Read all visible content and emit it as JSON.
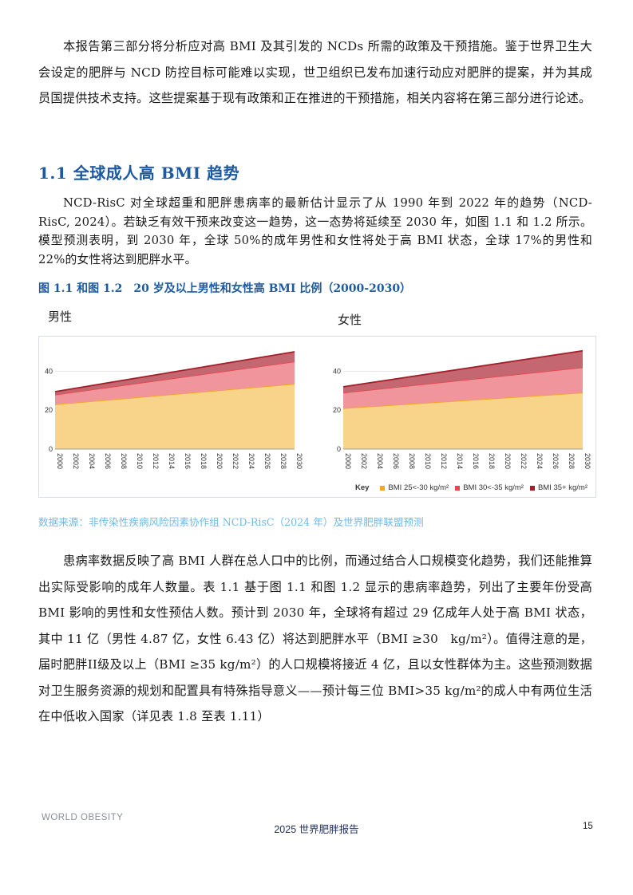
{
  "intro_paragraph": "本报告第三部分将分析应对高 BMI 及其引发的 NCDs 所需的政策及干预措施。鉴于世界卫生大会设定的肥胖与 NCD 防控目标可能难以实现，世卫组织已发布加速行动应对肥胖的提案，并为其成员国提供技术支持。这些提案基于现有政策和正在推进的干预措施，相关内容将在第三部分进行论述。",
  "section_heading": "1.1 全球成人高 BMI 趋势",
  "section_paragraph": "NCD-RisC 对全球超重和肥胖患病率的最新估计显示了从 1990 年到 2022 年的趋势（NCD-RisC, 2024）。若缺乏有效干预来改变这一趋势，这一态势将延续至 2030 年，如图 1.1 和 1.2 所示。模型预测表明，到 2030 年，全球 50%的成年男性和女性将处于高 BMI 状态，全球 17%的男性和 22%的女性将达到肥胖水平。",
  "figure_title": "图 1.1 和图 1.2　20 岁及以上男性和女性高 BMI 比例（2000-2030）",
  "panels": {
    "male_label": "男性",
    "female_label": "女性"
  },
  "legend": {
    "key_label": "Key",
    "items": [
      {
        "label": "BMI 25<-30 kg/m²",
        "color": "#f5a623"
      },
      {
        "label": "BMI 30<-35 kg/m²",
        "color": "#e8474f"
      },
      {
        "label": "BMI 35+ kg/m²",
        "color": "#a3202a"
      }
    ]
  },
  "chart_data": [
    {
      "type": "area",
      "title": "男性",
      "stacked": true,
      "x": [
        2000,
        2030
      ],
      "xticks": [
        "2000",
        "2002",
        "2004",
        "2006",
        "2008",
        "2010",
        "2012",
        "2014",
        "2016",
        "2018",
        "2020",
        "2022",
        "2024",
        "2026",
        "2028",
        "2030"
      ],
      "yticks": [
        "0",
        "20",
        "40"
      ],
      "ylim": [
        0,
        50
      ],
      "series": [
        {
          "name": "BMI 25<-30 kg/m²",
          "values": [
            23,
            33.5
          ],
          "color": "#f5a623"
        },
        {
          "name": "BMI 30<-35 kg/m²",
          "values": [
            5,
            11.5
          ],
          "color": "#e8474f"
        },
        {
          "name": "BMI 35+ kg/m²",
          "values": [
            1.5,
            5
          ],
          "color": "#a3202a"
        }
      ]
    },
    {
      "type": "area",
      "title": "女性",
      "stacked": true,
      "x": [
        2000,
        2030
      ],
      "xticks": [
        "2000",
        "2002",
        "2004",
        "2006",
        "2008",
        "2010",
        "2012",
        "2014",
        "2016",
        "2018",
        "2020",
        "2022",
        "2024",
        "2026",
        "2028",
        "2030"
      ],
      "yticks": [
        "0",
        "20",
        "40"
      ],
      "ylim": [
        0,
        50
      ],
      "series": [
        {
          "name": "BMI 25<-30 kg/m²",
          "values": [
            21,
            29
          ],
          "color": "#f5a623"
        },
        {
          "name": "BMI 30<-35 kg/m²",
          "values": [
            8,
            13
          ],
          "color": "#e8474f"
        },
        {
          "name": "BMI 35+ kg/m²",
          "values": [
            3,
            8.5
          ],
          "color": "#a3202a"
        }
      ]
    }
  ],
  "source_note": "数据来源：非传染性疾病风险因素协作组 NCD-RisC（2024 年）及世界肥胖联盟预测",
  "body_paragraph": "患病率数据反映了高 BMI 人群在总人口中的比例，而通过结合人口规模变化趋势，我们还能推算出实际受影响的成年人数量。表 1.1 基于图 1.1 和图 1.2 显示的患病率趋势，列出了主要年份受高 BMI 影响的男性和女性预估人数。预计到 2030 年，全球将有超过 29 亿成年人处于高 BMI 状态，其中 11 亿（男性 4.87 亿，女性 6.43 亿）将达到肥胖水平（BMI ≥30　kg/m²）。值得注意的是，届时肥胖II级及以上（BMI ≥35 kg/m²）的人口规模将接近 4 亿，且以女性群体为主。这些预测数据对卫生服务资源的规划和配置具有特殊指导意义——预计每三位 BMI>35 kg/m²的成人中有两位生活在中低收入国家（详见表 1.8 至表 1.11）",
  "footer": {
    "logo_text": "WORLD OBESITY",
    "center_text": "2025 世界肥胖报告",
    "page_number": "15"
  }
}
